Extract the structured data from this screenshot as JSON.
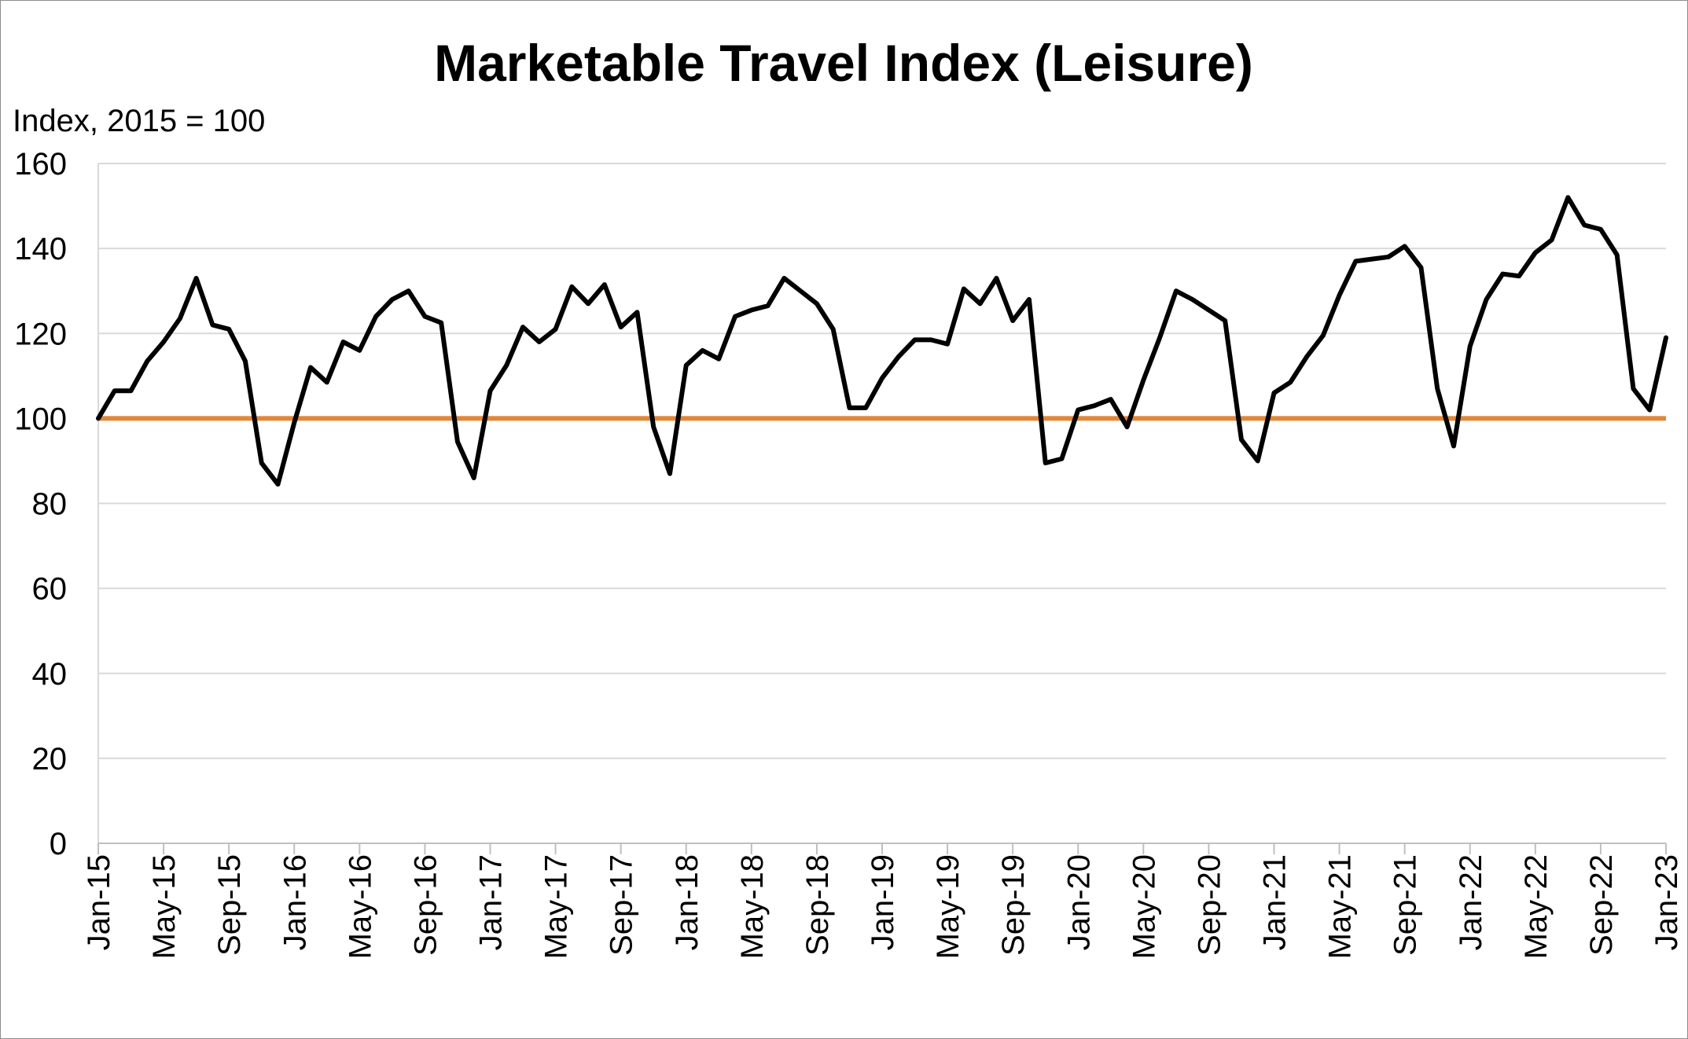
{
  "chart_data": {
    "type": "line",
    "title": "Marketable Travel Index (Leisure)",
    "ylabel": "Index, 2015 = 100",
    "xlabel": "",
    "ylim": [
      0,
      160
    ],
    "yticks": [
      0,
      20,
      40,
      60,
      80,
      100,
      120,
      140,
      160
    ],
    "xtick_labels": [
      "Jan-15",
      "May-15",
      "Sep-15",
      "Jan-16",
      "May-16",
      "Sep-16",
      "Jan-17",
      "May-17",
      "Sep-17",
      "Jan-18",
      "May-18",
      "Sep-18",
      "Jan-19",
      "May-19",
      "Sep-19",
      "Jan-20",
      "May-20",
      "Sep-20",
      "Jan-21",
      "May-21",
      "Sep-21",
      "Jan-22",
      "May-22",
      "Sep-22",
      "Jan-23"
    ],
    "grid": true,
    "legend": "none",
    "reference_line": {
      "value": 100,
      "color": "#e0883a"
    },
    "series": [
      {
        "color": "#000000",
        "start": "Jan-15",
        "values": [
          100,
          106.5,
          106.5,
          113.5,
          118,
          123.5,
          133,
          122,
          121,
          113.5,
          89.5,
          84.5,
          99,
          112,
          108.5,
          118,
          116,
          124,
          128,
          130,
          124,
          122.5,
          94.5,
          86,
          106.5,
          112.5,
          121.5,
          118,
          121,
          131,
          127,
          131.5,
          121.5,
          125,
          98,
          87,
          112.5,
          116,
          114,
          124,
          125.5,
          126.5,
          133,
          130,
          127,
          121,
          102.5,
          102.5,
          109.5,
          114.5,
          118.5,
          118.5,
          117.5,
          130.5,
          127,
          133,
          123,
          128,
          89.5,
          90.5,
          102,
          103,
          104.5,
          98,
          109,
          119,
          130,
          128,
          125.5,
          123,
          95,
          90,
          106,
          108.5,
          114.5,
          119.5,
          129,
          137,
          137.5,
          138,
          140.5,
          135.5,
          107,
          93.5,
          117,
          128,
          134,
          133.5,
          139,
          142,
          152,
          145.5,
          144.5,
          138.5,
          107,
          102,
          119
        ]
      }
    ]
  }
}
